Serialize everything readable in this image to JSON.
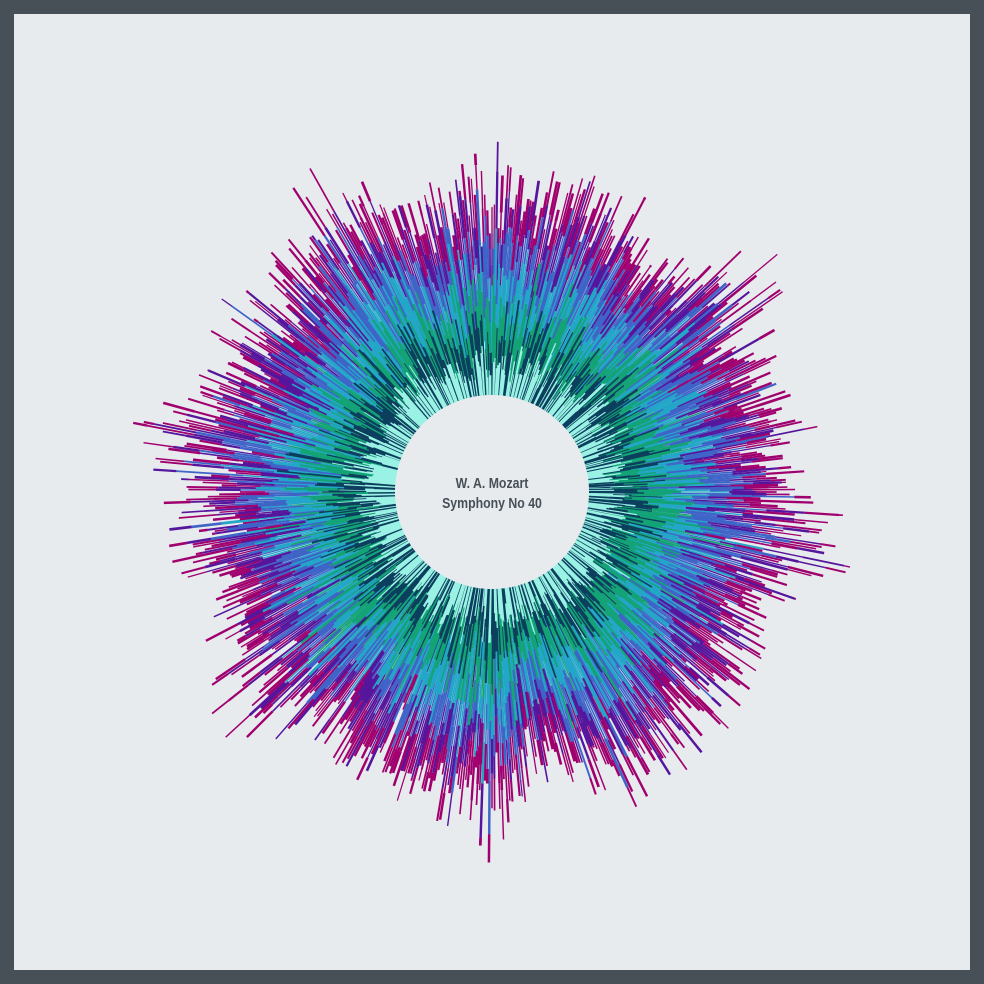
{
  "artwork": {
    "composer": "W. A. Mozart",
    "title": "Symphony No 40"
  },
  "palette": {
    "frame": "#474f57",
    "background": "#e7ebee",
    "center_disc": "#e7ebee",
    "layers": [
      "#9af2e4",
      "#0c3f5e",
      "#13a376",
      "#23a6c8",
      "#3f64c8",
      "#55159c",
      "#a0006e"
    ]
  }
}
